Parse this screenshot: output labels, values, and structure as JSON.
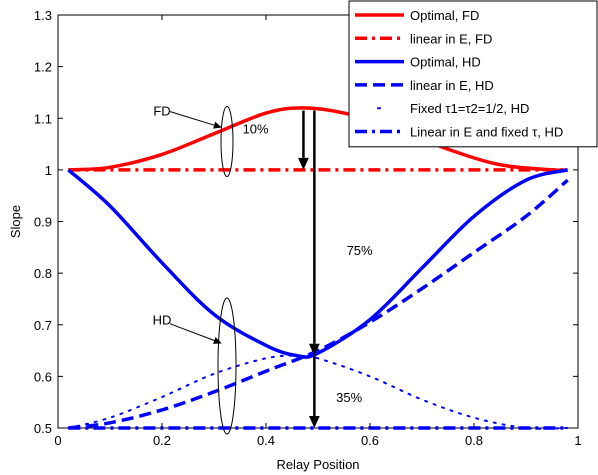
{
  "chart_data": {
    "type": "line",
    "title": "",
    "xlabel": "Relay Position",
    "ylabel": "Slope",
    "xlim": [
      0,
      1
    ],
    "ylim": [
      0.5,
      1.3
    ],
    "xticks": [
      0,
      0.2,
      0.4,
      0.6,
      0.8,
      1
    ],
    "xtick_labels": [
      "0",
      "0.2",
      "0.4",
      "0.6",
      "0.8",
      "1"
    ],
    "yticks": [
      0.5,
      0.6,
      0.7,
      0.8,
      0.9,
      1,
      1.1,
      1.2,
      1.3
    ],
    "ytick_labels": [
      "0.5",
      "0.6",
      "0.7",
      "0.8",
      "0.9",
      "1",
      "1.1",
      "1.2",
      "1.3"
    ],
    "grid": false,
    "legend_position": "top-right",
    "series": [
      {
        "name": "Optimal, FD",
        "color": "#ff0000",
        "style": "solid",
        "x": [
          0.02,
          0.1,
          0.2,
          0.3,
          0.4,
          0.47,
          0.55,
          0.65,
          0.75,
          0.85,
          0.95,
          0.98
        ],
        "y": [
          1.0,
          1.005,
          1.03,
          1.07,
          1.11,
          1.12,
          1.11,
          1.08,
          1.04,
          1.01,
          1.0,
          1.0
        ]
      },
      {
        "name": "linear in E, FD",
        "color": "#ff0000",
        "style": "dashdot",
        "x": [
          0.02,
          0.98
        ],
        "y": [
          1.0,
          1.0
        ]
      },
      {
        "name": "Optimal, HD",
        "color": "#0000ff",
        "style": "solid",
        "x": [
          0.02,
          0.1,
          0.2,
          0.3,
          0.4,
          0.46,
          0.5,
          0.6,
          0.7,
          0.8,
          0.9,
          0.98
        ],
        "y": [
          1.0,
          0.93,
          0.82,
          0.72,
          0.66,
          0.64,
          0.645,
          0.71,
          0.81,
          0.91,
          0.98,
          1.0
        ]
      },
      {
        "name": "linear in E, HD",
        "color": "#0000ff",
        "style": "dashed",
        "x": [
          0.02,
          0.1,
          0.2,
          0.3,
          0.4,
          0.5,
          0.6,
          0.7,
          0.8,
          0.9,
          0.98
        ],
        "y": [
          0.5,
          0.51,
          0.535,
          0.57,
          0.61,
          0.65,
          0.705,
          0.77,
          0.84,
          0.91,
          0.98
        ]
      },
      {
        "name": "Fixed τ1=τ2=1/2, HD",
        "color": "#0000ff",
        "style": "dotted",
        "x": [
          0.02,
          0.1,
          0.2,
          0.3,
          0.4,
          0.46,
          0.5,
          0.6,
          0.7,
          0.8,
          0.9,
          0.98
        ],
        "y": [
          0.5,
          0.52,
          0.56,
          0.605,
          0.635,
          0.64,
          0.635,
          0.6,
          0.555,
          0.52,
          0.5,
          0.5
        ]
      },
      {
        "name": "Linear in E and fixed τ, HD",
        "color": "#0000ff",
        "style": "dashdot",
        "x": [
          0.02,
          0.98
        ],
        "y": [
          0.5,
          0.5
        ]
      }
    ],
    "annotations": [
      {
        "text": "FD",
        "x": 0.2,
        "y": 1.115
      },
      {
        "text": "HD",
        "x": 0.2,
        "y": 0.71
      },
      {
        "text": "10%",
        "x": 0.38,
        "y": 1.08
      },
      {
        "text": "75%",
        "x": 0.58,
        "y": 0.845
      },
      {
        "text": "35%",
        "x": 0.56,
        "y": 0.56
      }
    ]
  }
}
